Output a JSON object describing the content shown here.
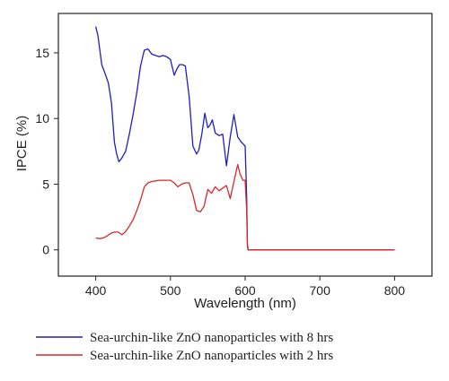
{
  "chart_data": {
    "type": "line",
    "title": "",
    "xlabel": "Wavelength (nm)",
    "ylabel": "IPCE (%)",
    "xlim": [
      350,
      850
    ],
    "ylim": [
      -2,
      18
    ],
    "xticks": [
      400,
      500,
      600,
      700,
      800
    ],
    "yticks": [
      0,
      5,
      10,
      15
    ],
    "grid": false,
    "legend_position": "bottom",
    "series": [
      {
        "name": "Sea-urchin-like ZnO nanoparticles with 8 hrs",
        "color": "#1f1fbf",
        "x": [
          400,
          403,
          408,
          412,
          417,
          421,
          425,
          428,
          431,
          435,
          440,
          445,
          450,
          455,
          460,
          465,
          470,
          475,
          480,
          485,
          490,
          495,
          500,
          505,
          508,
          512,
          516,
          520,
          525,
          530,
          535,
          538,
          542,
          546,
          550,
          553,
          556,
          560,
          565,
          570,
          575,
          580,
          585,
          590,
          595,
          600,
          602,
          603,
          604,
          605,
          650,
          700,
          750,
          800
        ],
        "y": [
          17.0,
          16.3,
          14.1,
          13.5,
          12.7,
          11.2,
          8.2,
          7.3,
          6.7,
          7.0,
          7.5,
          8.8,
          10.3,
          12.0,
          14.0,
          15.2,
          15.3,
          14.9,
          14.8,
          14.7,
          14.8,
          14.7,
          14.5,
          13.3,
          13.7,
          14.1,
          14.1,
          14.0,
          11.7,
          7.9,
          7.3,
          7.6,
          8.8,
          10.4,
          9.3,
          9.5,
          9.9,
          8.9,
          8.7,
          8.8,
          6.4,
          8.6,
          10.3,
          8.6,
          8.2,
          7.9,
          4.0,
          0.3,
          0.0,
          0.0,
          0.0,
          0.0,
          0.0,
          0.0
        ]
      },
      {
        "name": "Sea-urchin-like ZnO nanoparticles with 2 hrs",
        "color": "#d42a2a",
        "x": [
          400,
          405,
          410,
          415,
          420,
          425,
          430,
          435,
          440,
          445,
          450,
          455,
          460,
          465,
          470,
          475,
          480,
          485,
          490,
          495,
          500,
          505,
          510,
          515,
          520,
          525,
          530,
          535,
          540,
          545,
          550,
          555,
          560,
          565,
          570,
          575,
          580,
          585,
          590,
          593,
          597,
          600,
          602,
          603,
          604,
          605,
          650,
          700,
          750,
          800
        ],
        "y": [
          0.9,
          0.85,
          0.9,
          1.05,
          1.25,
          1.35,
          1.35,
          1.15,
          1.4,
          1.8,
          2.3,
          3.0,
          3.8,
          4.8,
          5.1,
          5.2,
          5.25,
          5.3,
          5.3,
          5.3,
          5.3,
          5.1,
          4.8,
          5.0,
          5.1,
          5.1,
          4.2,
          3.0,
          2.9,
          3.3,
          4.6,
          4.3,
          4.8,
          4.5,
          4.7,
          4.9,
          3.9,
          5.2,
          6.5,
          5.8,
          5.3,
          5.3,
          3.0,
          0.5,
          0.0,
          0.0,
          0.0,
          0.0,
          0.0,
          0.0
        ]
      }
    ]
  }
}
